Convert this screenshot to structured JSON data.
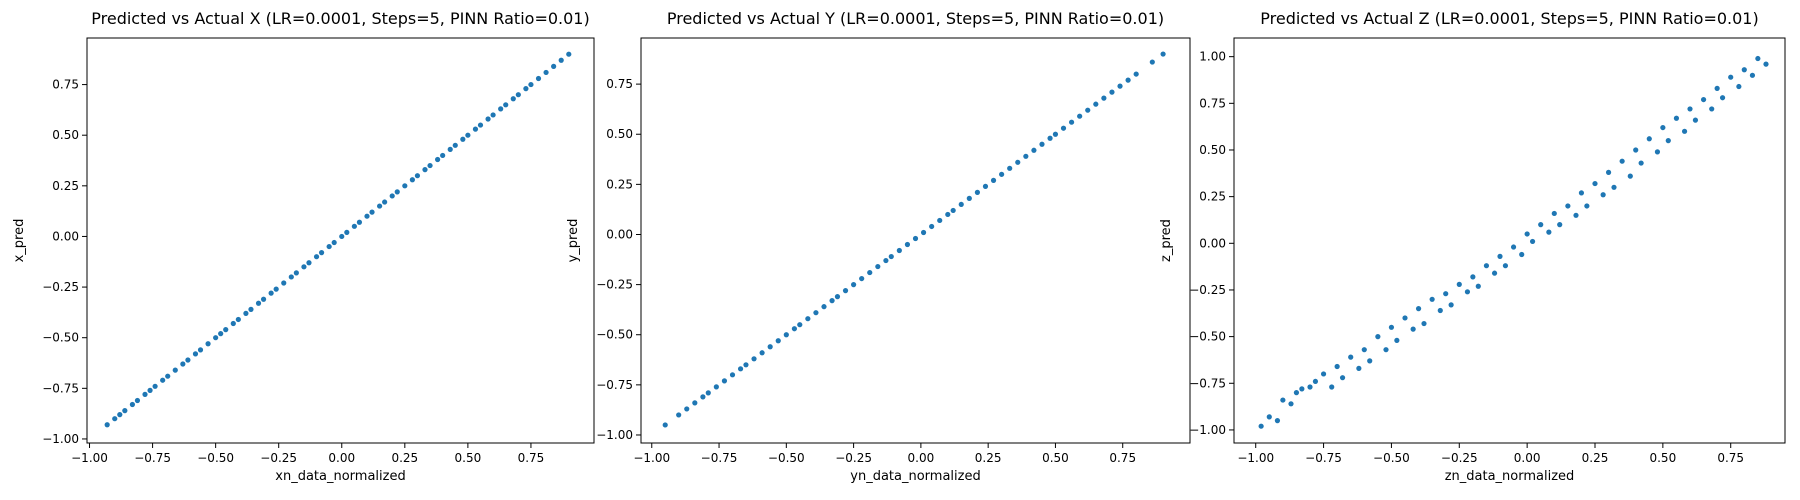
{
  "chart_data": [
    {
      "type": "scatter",
      "title": "Predicted vs Actual X (LR=0.0001, Steps=5, PINN Ratio=0.01)",
      "xlabel": "xn_data_normalized",
      "ylabel": "x_pred",
      "xlim": [
        -1.01,
        1.0
      ],
      "ylim": [
        -1.02,
        0.98
      ],
      "xticks": [
        -1.0,
        -0.75,
        -0.5,
        -0.25,
        0.0,
        0.25,
        0.5,
        0.75
      ],
      "yticks": [
        -1.0,
        -0.75,
        -0.5,
        -0.25,
        0.0,
        0.25,
        0.5,
        0.75
      ],
      "grid": false,
      "color": "#1f77b4",
      "x": [
        -0.93,
        -0.9,
        -0.88,
        -0.86,
        -0.83,
        -0.81,
        -0.78,
        -0.76,
        -0.74,
        -0.71,
        -0.69,
        -0.66,
        -0.63,
        -0.61,
        -0.58,
        -0.56,
        -0.53,
        -0.5,
        -0.48,
        -0.46,
        -0.43,
        -0.41,
        -0.38,
        -0.36,
        -0.33,
        -0.31,
        -0.28,
        -0.26,
        -0.23,
        -0.2,
        -0.18,
        -0.15,
        -0.13,
        -0.1,
        -0.08,
        -0.05,
        -0.03,
        0.0,
        0.02,
        0.05,
        0.07,
        0.1,
        0.12,
        0.15,
        0.17,
        0.2,
        0.22,
        0.25,
        0.28,
        0.3,
        0.33,
        0.35,
        0.38,
        0.4,
        0.43,
        0.45,
        0.48,
        0.5,
        0.53,
        0.55,
        0.58,
        0.6,
        0.63,
        0.65,
        0.68,
        0.7,
        0.73,
        0.75,
        0.78,
        0.81,
        0.84,
        0.87,
        0.9
      ],
      "y": [
        -0.93,
        -0.9,
        -0.88,
        -0.86,
        -0.83,
        -0.81,
        -0.78,
        -0.76,
        -0.74,
        -0.71,
        -0.69,
        -0.66,
        -0.63,
        -0.61,
        -0.58,
        -0.56,
        -0.53,
        -0.5,
        -0.48,
        -0.46,
        -0.43,
        -0.41,
        -0.38,
        -0.36,
        -0.33,
        -0.31,
        -0.28,
        -0.26,
        -0.23,
        -0.2,
        -0.18,
        -0.15,
        -0.13,
        -0.1,
        -0.08,
        -0.05,
        -0.03,
        0.0,
        0.02,
        0.05,
        0.07,
        0.1,
        0.12,
        0.15,
        0.17,
        0.2,
        0.22,
        0.25,
        0.28,
        0.3,
        0.33,
        0.35,
        0.38,
        0.4,
        0.43,
        0.45,
        0.48,
        0.5,
        0.53,
        0.55,
        0.58,
        0.6,
        0.63,
        0.65,
        0.68,
        0.7,
        0.73,
        0.75,
        0.78,
        0.81,
        0.84,
        0.87,
        0.9
      ]
    },
    {
      "type": "scatter",
      "title": "Predicted vs Actual Y (LR=0.0001, Steps=5, PINN Ratio=0.01)",
      "xlabel": "yn_data_normalized",
      "ylabel": "y_pred",
      "xlim": [
        -1.04,
        1.0
      ],
      "ylim": [
        -1.04,
        0.98
      ],
      "xticks": [
        -1.0,
        -0.75,
        -0.5,
        -0.25,
        0.0,
        0.25,
        0.5,
        0.75
      ],
      "yticks": [
        -1.0,
        -0.75,
        -0.5,
        -0.25,
        0.0,
        0.25,
        0.5,
        0.75
      ],
      "grid": false,
      "color": "#1f77b4",
      "x": [
        -0.95,
        -0.9,
        -0.87,
        -0.84,
        -0.81,
        -0.79,
        -0.76,
        -0.73,
        -0.7,
        -0.67,
        -0.65,
        -0.62,
        -0.59,
        -0.56,
        -0.53,
        -0.5,
        -0.47,
        -0.45,
        -0.42,
        -0.39,
        -0.36,
        -0.33,
        -0.31,
        -0.28,
        -0.25,
        -0.22,
        -0.19,
        -0.16,
        -0.13,
        -0.11,
        -0.08,
        -0.05,
        -0.02,
        0.01,
        0.04,
        0.07,
        0.1,
        0.12,
        0.15,
        0.18,
        0.21,
        0.24,
        0.27,
        0.3,
        0.33,
        0.36,
        0.39,
        0.42,
        0.45,
        0.48,
        0.5,
        0.53,
        0.56,
        0.59,
        0.62,
        0.65,
        0.68,
        0.71,
        0.74,
        0.77,
        0.8,
        0.86,
        0.9
      ],
      "y": [
        -0.95,
        -0.9,
        -0.87,
        -0.84,
        -0.81,
        -0.79,
        -0.76,
        -0.73,
        -0.7,
        -0.67,
        -0.65,
        -0.62,
        -0.59,
        -0.56,
        -0.53,
        -0.5,
        -0.47,
        -0.45,
        -0.42,
        -0.39,
        -0.36,
        -0.33,
        -0.31,
        -0.28,
        -0.25,
        -0.22,
        -0.19,
        -0.16,
        -0.13,
        -0.11,
        -0.08,
        -0.05,
        -0.02,
        0.01,
        0.04,
        0.07,
        0.1,
        0.12,
        0.15,
        0.18,
        0.21,
        0.24,
        0.27,
        0.3,
        0.33,
        0.36,
        0.39,
        0.42,
        0.45,
        0.48,
        0.5,
        0.53,
        0.56,
        0.59,
        0.62,
        0.65,
        0.68,
        0.71,
        0.74,
        0.77,
        0.8,
        0.86,
        0.9
      ]
    },
    {
      "type": "scatter",
      "title": "Predicted vs Actual Z (LR=0.0001, Steps=5, PINN Ratio=0.01)",
      "xlabel": "zn_data_normalized",
      "ylabel": "z_pred",
      "xlim": [
        -1.08,
        0.95
      ],
      "ylim": [
        -1.07,
        1.1
      ],
      "xticks": [
        -1.0,
        -0.75,
        -0.5,
        -0.25,
        0.0,
        0.25,
        0.5,
        0.75
      ],
      "yticks": [
        -1.0,
        -0.75,
        -0.5,
        -0.25,
        0.0,
        0.25,
        0.5,
        0.75,
        1.0
      ],
      "grid": false,
      "color": "#1f77b4",
      "x": [
        -0.98,
        -0.95,
        -0.92,
        -0.9,
        -0.87,
        -0.85,
        -0.83,
        -0.8,
        -0.78,
        -0.75,
        -0.72,
        -0.7,
        -0.68,
        -0.65,
        -0.62,
        -0.6,
        -0.58,
        -0.55,
        -0.52,
        -0.5,
        -0.48,
        -0.45,
        -0.42,
        -0.4,
        -0.38,
        -0.35,
        -0.32,
        -0.3,
        -0.28,
        -0.25,
        -0.22,
        -0.2,
        -0.18,
        -0.15,
        -0.12,
        -0.1,
        -0.08,
        -0.05,
        -0.02,
        0.0,
        0.02,
        0.05,
        0.08,
        0.1,
        0.12,
        0.15,
        0.18,
        0.2,
        0.22,
        0.25,
        0.28,
        0.3,
        0.32,
        0.35,
        0.38,
        0.4,
        0.42,
        0.45,
        0.48,
        0.5,
        0.52,
        0.55,
        0.58,
        0.6,
        0.62,
        0.65,
        0.68,
        0.7,
        0.72,
        0.75,
        0.78,
        0.8,
        0.83,
        0.85,
        0.88
      ],
      "y": [
        -0.98,
        -0.93,
        -0.95,
        -0.84,
        -0.86,
        -0.8,
        -0.78,
        -0.77,
        -0.74,
        -0.7,
        -0.77,
        -0.66,
        -0.72,
        -0.61,
        -0.67,
        -0.57,
        -0.63,
        -0.5,
        -0.57,
        -0.45,
        -0.52,
        -0.4,
        -0.46,
        -0.35,
        -0.43,
        -0.3,
        -0.36,
        -0.27,
        -0.33,
        -0.22,
        -0.26,
        -0.18,
        -0.23,
        -0.12,
        -0.16,
        -0.07,
        -0.12,
        -0.02,
        -0.06,
        0.05,
        0.01,
        0.1,
        0.06,
        0.16,
        0.1,
        0.2,
        0.15,
        0.27,
        0.2,
        0.32,
        0.26,
        0.38,
        0.3,
        0.44,
        0.36,
        0.5,
        0.43,
        0.56,
        0.49,
        0.62,
        0.55,
        0.67,
        0.6,
        0.72,
        0.66,
        0.77,
        0.72,
        0.83,
        0.78,
        0.89,
        0.84,
        0.93,
        0.9,
        0.99,
        0.96
      ]
    }
  ]
}
